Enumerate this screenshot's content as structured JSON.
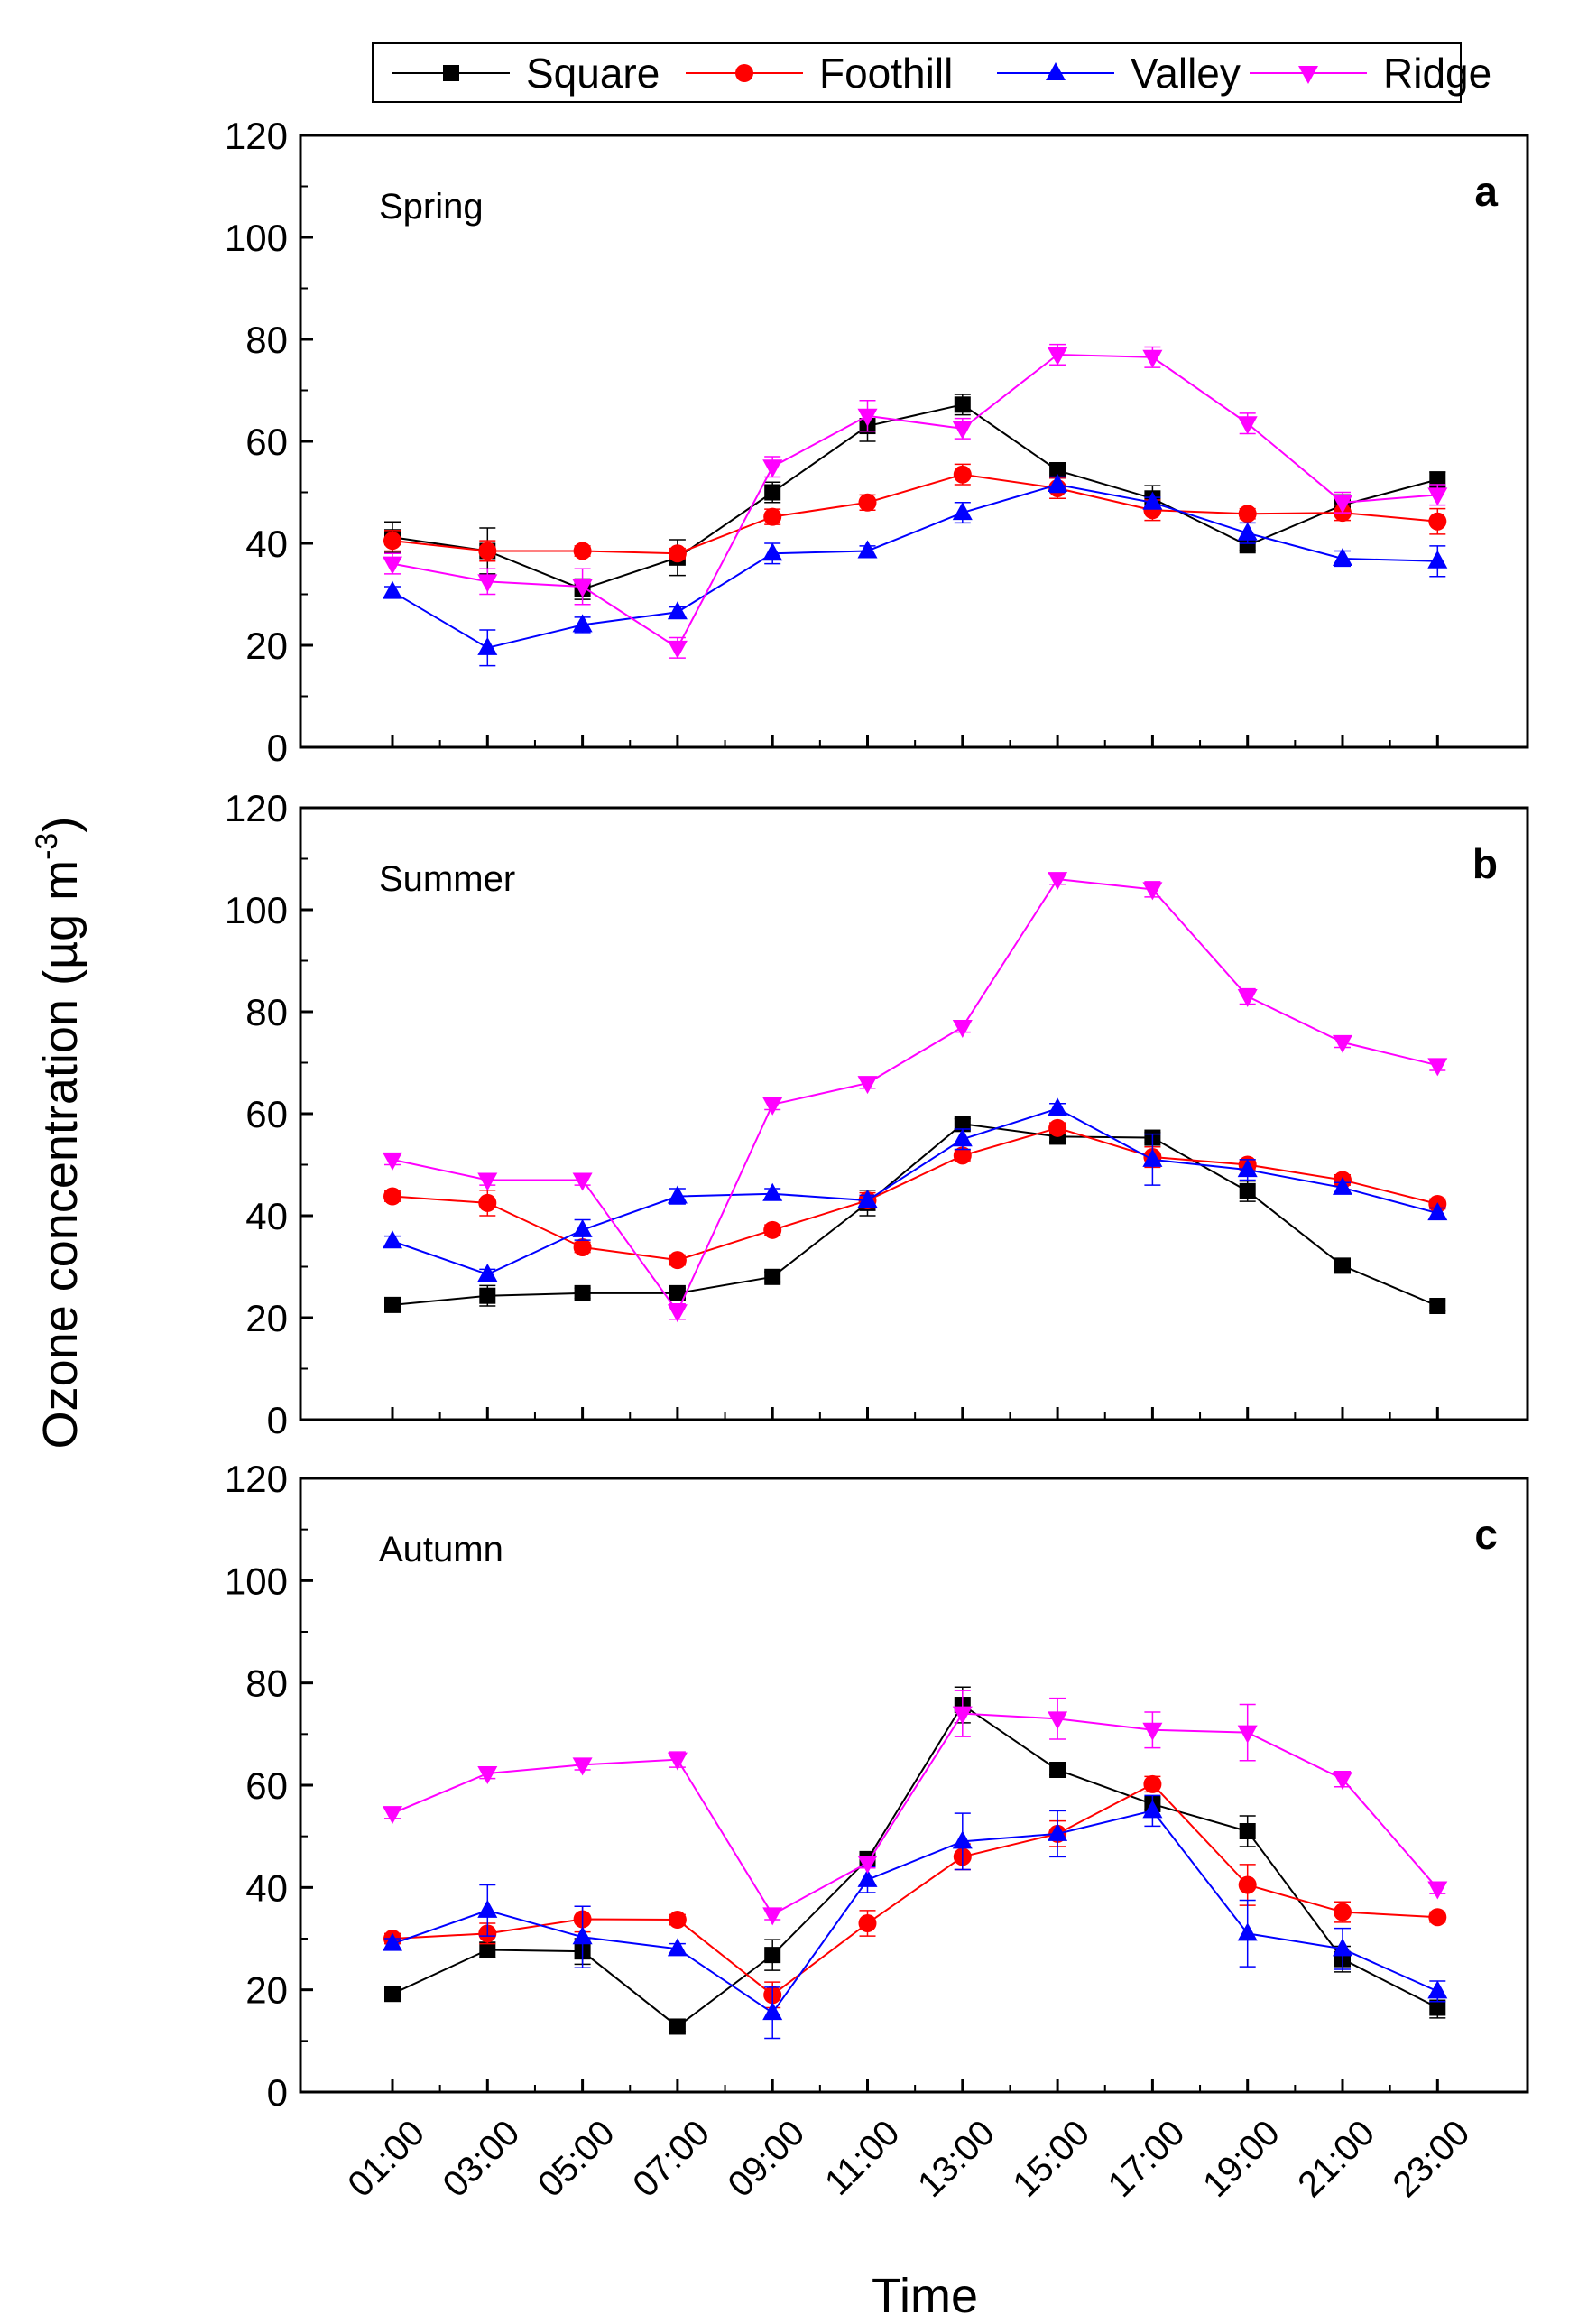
{
  "chart_data": {
    "type": "line",
    "ylabel_main": "Ozone concentration (µg m",
    "ylabel_sup": "-3",
    "ylabel_tail": ")",
    "xlabel": "Time",
    "categories": [
      "01:00",
      "03:00",
      "05:00",
      "07:00",
      "09:00",
      "11:00",
      "13:00",
      "15:00",
      "17:00",
      "19:00",
      "21:00",
      "23:00"
    ],
    "ylim": [
      0,
      120
    ],
    "yticks": [
      0,
      20,
      40,
      60,
      80,
      100,
      120
    ],
    "legend": {
      "placement": "top",
      "entries": [
        "Square",
        "Foothill",
        "Valley",
        "Ridge"
      ]
    },
    "series_styles": [
      {
        "name": "Square",
        "color": "#000000",
        "marker": "square"
      },
      {
        "name": "Foothill",
        "color": "#ff0000",
        "marker": "circle"
      },
      {
        "name": "Valley",
        "color": "#0000ff",
        "marker": "triangle-up"
      },
      {
        "name": "Ridge",
        "color": "#ff00ff",
        "marker": "triangle-down"
      }
    ],
    "panels": [
      {
        "letter": "a",
        "season": "Spring",
        "series": [
          {
            "name": "Square",
            "values": [
              41.2,
              38.5,
              31.0,
              37.2,
              50.0,
              63.0,
              67.2,
              54.3,
              48.8,
              39.6,
              47.5,
              52.5
            ],
            "errors": [
              3,
              4.5,
              2,
              3.5,
              2,
              3,
              2,
              1.5,
              2.5,
              1,
              2,
              1.5
            ]
          },
          {
            "name": "Foothill",
            "values": [
              40.5,
              38.5,
              38.5,
              38.0,
              45.2,
              48.0,
              53.5,
              50.8,
              46.5,
              45.8,
              46.0,
              44.3
            ],
            "errors": [
              2,
              2,
              1,
              1,
              1.5,
              1.5,
              2,
              2,
              2,
              1,
              1.5,
              2.5
            ]
          },
          {
            "name": "Valley",
            "values": [
              30.5,
              19.5,
              24.0,
              26.5,
              38.0,
              38.5,
              46.0,
              51.5,
              48.0,
              42.0,
              37.0,
              36.5
            ],
            "errors": [
              1,
              3.5,
              1.5,
              1,
              2,
              1,
              2,
              1.5,
              1,
              2,
              1.5,
              3
            ]
          },
          {
            "name": "Ridge",
            "values": [
              36.0,
              32.5,
              31.5,
              19.5,
              55.0,
              65.0,
              62.5,
              77.0,
              76.5,
              63.5,
              48.0,
              49.5
            ],
            "errors": [
              2,
              2.5,
              3.5,
              2,
              2,
              3,
              2,
              2,
              2,
              2,
              2,
              2
            ]
          }
        ]
      },
      {
        "letter": "b",
        "season": "Summer",
        "series": [
          {
            "name": "Square",
            "values": [
              22.5,
              24.3,
              24.8,
              24.8,
              28.0,
              42.5,
              58.0,
              55.5,
              55.3,
              44.8,
              30.2,
              22.3
            ],
            "errors": [
              1,
              2,
              1,
              1,
              1,
              2.5,
              1,
              1,
              1,
              2,
              1,
              1
            ]
          },
          {
            "name": "Foothill",
            "values": [
              43.8,
              42.5,
              33.8,
              31.3,
              37.2,
              43.0,
              51.8,
              57.2,
              51.5,
              50.0,
              47.0,
              42.3
            ],
            "errors": [
              1,
              2.5,
              1,
              1,
              1,
              1.5,
              1,
              1,
              2,
              1,
              1,
              1
            ]
          },
          {
            "name": "Valley",
            "values": [
              35.0,
              28.5,
              37.2,
              43.8,
              44.3,
              43.0,
              55.0,
              61.0,
              51.0,
              49.0,
              45.5,
              40.5
            ],
            "errors": [
              1,
              1,
              2,
              1.5,
              1,
              1,
              2,
              1,
              5,
              2,
              1,
              1
            ]
          },
          {
            "name": "Ridge",
            "values": [
              51.0,
              47.0,
              47.0,
              21.2,
              61.8,
              66.0,
              77.0,
              106.0,
              104.0,
              83.0,
              74.0,
              69.5
            ],
            "errors": [
              1,
              1,
              1,
              1.5,
              1,
              1,
              1,
              1,
              1.5,
              1.5,
              1,
              1
            ]
          }
        ]
      },
      {
        "letter": "c",
        "season": "Autumn",
        "series": [
          {
            "name": "Square",
            "values": [
              19.2,
              27.8,
              27.5,
              12.8,
              26.8,
              45.5,
              75.7,
              63.0,
              56.3,
              51.0,
              26.0,
              16.5
            ],
            "errors": [
              1,
              1.5,
              2.5,
              1,
              3,
              1.5,
              3.5,
              1,
              1,
              3,
              2.5,
              2
            ]
          },
          {
            "name": "Foothill",
            "values": [
              30.0,
              31.0,
              33.8,
              33.7,
              19.0,
              33.0,
              46.0,
              50.5,
              60.2,
              40.5,
              35.2,
              34.2
            ],
            "errors": [
              1,
              2,
              2.5,
              1,
              2.5,
              2.5,
              2.5,
              2.5,
              1.5,
              4,
              2,
              1
            ]
          },
          {
            "name": "Valley",
            "values": [
              29.0,
              35.5,
              30.3,
              28.0,
              15.5,
              41.5,
              49.0,
              50.5,
              55.0,
              31.0,
              28.0,
              19.7
            ],
            "errors": [
              1,
              5,
              6,
              1,
              5,
              2.5,
              5.5,
              4.5,
              3,
              6.5,
              4,
              2
            ]
          },
          {
            "name": "Ridge",
            "values": [
              54.5,
              62.3,
              64.0,
              65.0,
              34.7,
              44.8,
              74.0,
              73.0,
              70.8,
              70.3,
              61.2,
              39.8
            ],
            "errors": [
              1,
              1,
              1,
              1.5,
              1,
              1,
              4.5,
              4,
              3.5,
              5.5,
              1.5,
              1
            ]
          }
        ]
      }
    ]
  }
}
